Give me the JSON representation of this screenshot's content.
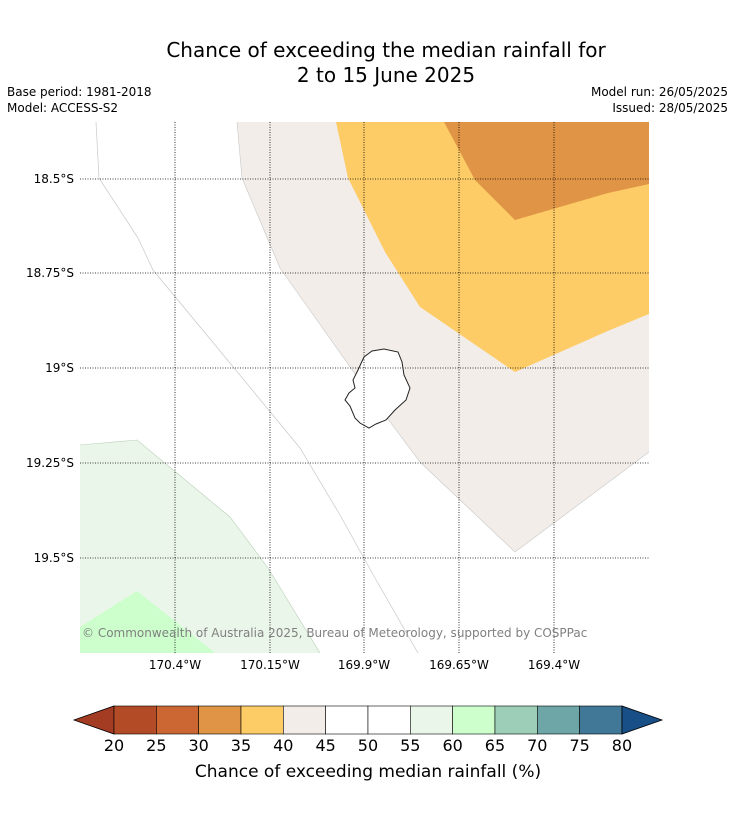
{
  "title_line1": "Chance of exceeding the median rainfall for",
  "title_line2": "2 to 15 June 2025",
  "base_period": "Base period: 1981-2018",
  "model": "Model: ACCESS-S2",
  "model_run": "Model run: 26/05/2025",
  "issued": "Issued: 28/05/2025",
  "copyright": "© Commonwealth of Australia 2025, Bureau of Meteorology, supported by COSPPac",
  "latitudes": [
    "18.5°S",
    "18.75°S",
    "19°S",
    "19.25°S",
    "19.5°S"
  ],
  "longitudes": [
    "170.4°W",
    "170.15°W",
    "169.9°W",
    "169.65°W",
    "169.4°W"
  ],
  "colorbar": {
    "label": "Chance of exceeding median rainfall (%)",
    "ticks": [
      "20",
      "25",
      "30",
      "35",
      "40",
      "45",
      "50",
      "55",
      "60",
      "65",
      "70",
      "75",
      "80"
    ],
    "colors": [
      "#a33c23",
      "#b34b26",
      "#cc6633",
      "#e09445",
      "#fdcc66",
      "#f2ede8",
      "#ffffff",
      "#ffffff",
      "#ebf6eb",
      "#ccffcc",
      "#9dcfb8",
      "#6ea6a8",
      "#417897",
      "#174f86"
    ]
  },
  "map_colors": {
    "band_35_40": "#e09445",
    "band_40_45": "#fdcc66",
    "band_45_50": "#f2ede8",
    "band_55_60": "#ebf6eb",
    "band_60_65": "#ccffcc"
  }
}
